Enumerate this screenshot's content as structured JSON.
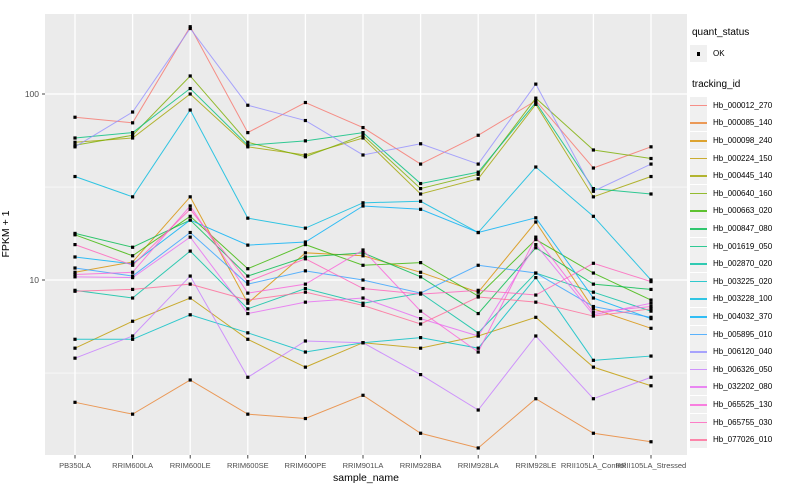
{
  "chart_data": {
    "type": "line",
    "xlabel": "sample_name",
    "ylabel": "FPKM + 1",
    "y_scale": "log10",
    "y_ticks": [
      {
        "label": "100",
        "value": 100
      },
      {
        "label": "10",
        "value": 10
      }
    ],
    "y_minor_breaks": [
      31.6,
      3.16
    ],
    "ylim": [
      1.05,
      268
    ],
    "grid": "on",
    "legend_position": "right",
    "categories": [
      "PB350LA",
      "RRIM600LA",
      "RRIM600LE",
      "RRIM600SE",
      "RRIM600PE",
      "RRIM901LA",
      "RRIM928BA",
      "RRIM928LA",
      "RRIM928LE",
      "RRII105LA_Control",
      "RRII105LA_Stressed"
    ],
    "series": [
      {
        "tracking_id": "Hb_000012_270",
        "color": "#F8766D",
        "values": [
          75,
          70,
          230,
          62,
          90,
          66,
          42,
          60,
          92,
          40,
          52
        ]
      },
      {
        "tracking_id": "Hb_000085_140",
        "color": "#EA8331",
        "values": [
          2.2,
          1.9,
          2.9,
          1.9,
          1.8,
          2.4,
          1.5,
          1.25,
          2.3,
          1.5,
          1.35
        ]
      },
      {
        "tracking_id": "Hb_000098_240",
        "color": "#D89000",
        "values": [
          11,
          12.5,
          28,
          7.5,
          14,
          13.5,
          11,
          8.6,
          20.5,
          7,
          5.5
        ]
      },
      {
        "tracking_id": "Hb_000224_150",
        "color": "#C09B00",
        "values": [
          4.3,
          6,
          8,
          4.8,
          3.4,
          4.6,
          4.3,
          5,
          6.3,
          3.4,
          2.7
        ]
      },
      {
        "tracking_id": "Hb_000445_140",
        "color": "#A3A500",
        "values": [
          55,
          58,
          100,
          52,
          47,
          58,
          29,
          35,
          88,
          28,
          36
        ]
      },
      {
        "tracking_id": "Hb_000640_160",
        "color": "#7CAE00",
        "values": [
          53,
          60,
          125,
          55,
          46,
          60,
          31,
          37,
          95,
          50,
          45
        ]
      },
      {
        "tracking_id": "Hb_000663_020",
        "color": "#39B600",
        "values": [
          17.5,
          13.5,
          22,
          11.5,
          15.5,
          12,
          12.4,
          8.2,
          16.5,
          10.9,
          7.8
        ]
      },
      {
        "tracking_id": "Hb_000847_080",
        "color": "#00BB4E",
        "values": [
          17.8,
          15,
          21,
          10.5,
          13.3,
          14,
          10.4,
          6.6,
          14.9,
          9.5,
          8.9
        ]
      },
      {
        "tracking_id": "Hb_001619_050",
        "color": "#00BF7D",
        "values": [
          58,
          62,
          107,
          53,
          56,
          62,
          33,
          38,
          90,
          31,
          29
        ]
      },
      {
        "tracking_id": "Hb_002870_020",
        "color": "#00C1A3",
        "values": [
          8.8,
          8,
          14.3,
          7,
          9,
          7.5,
          8.5,
          5.2,
          10.9,
          8.6,
          6.8
        ]
      },
      {
        "tracking_id": "Hb_003225_020",
        "color": "#00BFC4",
        "values": [
          4.8,
          4.8,
          6.5,
          5.2,
          4.1,
          4.6,
          4.9,
          4.3,
          10.3,
          3.7,
          3.9
        ]
      },
      {
        "tracking_id": "Hb_003228_100",
        "color": "#00BAE0",
        "values": [
          36,
          28,
          82,
          21.5,
          19,
          26,
          26.5,
          18,
          40.5,
          22,
          10
        ]
      },
      {
        "tracking_id": "Hb_004032_370",
        "color": "#00B0F6",
        "values": [
          13.3,
          12.2,
          21,
          15.4,
          16,
          25,
          24,
          18,
          21.6,
          8,
          6.2
        ]
      },
      {
        "tracking_id": "Hb_005895_010",
        "color": "#35A2FF",
        "values": [
          11.6,
          10.5,
          18,
          9.5,
          11.2,
          10,
          8.5,
          12,
          10.9,
          7.2,
          6.3
        ]
      },
      {
        "tracking_id": "Hb_006120_040",
        "color": "#9590FF",
        "values": [
          52,
          80,
          225,
          87,
          72,
          47,
          54,
          42,
          113,
          30,
          42
        ]
      },
      {
        "tracking_id": "Hb_006326_050",
        "color": "#C77CFF",
        "values": [
          3.8,
          5,
          10.5,
          3,
          4.7,
          4.6,
          3.1,
          2,
          5,
          2.3,
          3
        ]
      },
      {
        "tracking_id": "Hb_032202_080",
        "color": "#E76BF3",
        "values": [
          10.4,
          10.3,
          17,
          6.6,
          7.6,
          8,
          6.2,
          5,
          15.5,
          6.5,
          7.5
        ]
      },
      {
        "tracking_id": "Hb_065525_130",
        "color": "#FA62DB",
        "values": [
          10.7,
          11,
          25,
          8.5,
          9.5,
          14.5,
          6.8,
          4.1,
          17,
          6.7,
          7.2
        ]
      },
      {
        "tracking_id": "Hb_065755_030",
        "color": "#FF62BC",
        "values": [
          15.5,
          12,
          24,
          9.8,
          13,
          9,
          8.4,
          8.8,
          8.3,
          12.3,
          9.8
        ]
      },
      {
        "tracking_id": "Hb_077026_010",
        "color": "#FF6A98",
        "values": [
          8.7,
          8.9,
          9.5,
          7.8,
          8.6,
          7.3,
          5.8,
          8.1,
          7.6,
          6.4,
          7
        ]
      }
    ],
    "legend": {
      "quant_status_title": "quant_status",
      "quant_status_items": [
        {
          "label": "OK",
          "symbol": "black-square-point"
        }
      ],
      "tracking_id_title": "tracking_id"
    },
    "colors": {
      "panel_bg": "#EBEBEB",
      "gridline": "#FFFFFF",
      "point": "#000000",
      "tick_text": "#4D4D4D",
      "legend_key_bg": "#F0F0F0"
    }
  }
}
